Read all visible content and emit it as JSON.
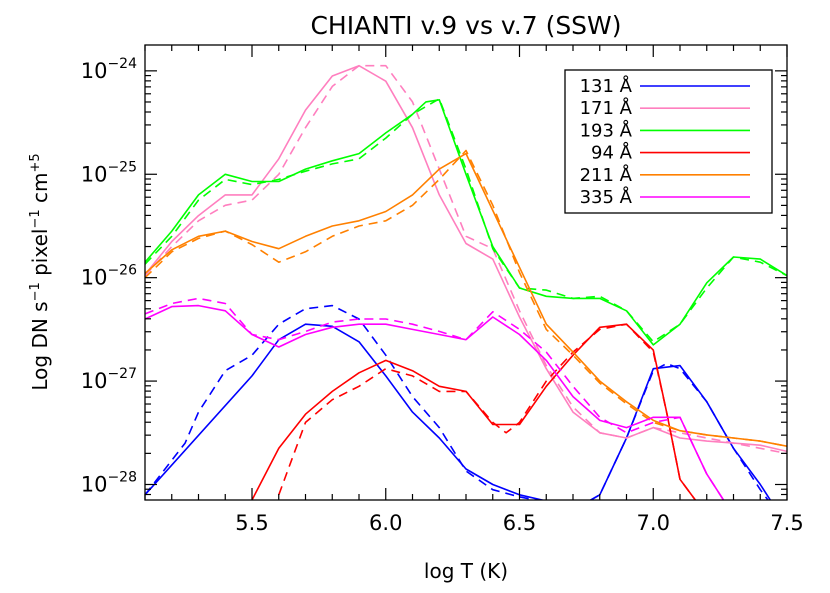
{
  "chart_data": {
    "type": "line",
    "title": "CHIANTI v.9 vs v.7 (SSW)",
    "xlabel": "log T (K)",
    "ylabel": {
      "prefix": "Log DN s",
      "exp1": "−1",
      "mid": " pixel",
      "exp2": "−1",
      "mid2": " cm",
      "exp3": "+5"
    },
    "xlim": [
      5.1,
      7.5
    ],
    "ylim_log10": [
      -28.15,
      -23.75
    ],
    "y_scale": "log",
    "x_ticks": [
      5.5,
      6.0,
      6.5,
      7.0,
      7.5
    ],
    "x_tick_labels": [
      "5.5",
      "6.0",
      "6.5",
      "7.0",
      "7.5"
    ],
    "y_ticks": [
      {
        "base": "10",
        "exp": "−28",
        "log": -28
      },
      {
        "base": "10",
        "exp": "−27",
        "log": -27
      },
      {
        "base": "10",
        "exp": "−26",
        "log": -26
      },
      {
        "base": "10",
        "exp": "−25",
        "log": -25
      },
      {
        "base": "10",
        "exp": "−24",
        "log": -24
      }
    ],
    "legend_position": "top-right",
    "line_styles": {
      "v9": "solid",
      "v7": "dashed"
    },
    "series": [
      {
        "name": "131 Å",
        "color": "#0000ff",
        "v9": [
          [
            5.1,
            -28.1
          ],
          [
            5.5,
            -26.95
          ],
          [
            5.6,
            -26.6
          ],
          [
            5.7,
            -26.45
          ],
          [
            5.8,
            -26.47
          ],
          [
            5.9,
            -26.62
          ],
          [
            6.0,
            -26.95
          ],
          [
            6.1,
            -27.3
          ],
          [
            6.2,
            -27.55
          ],
          [
            6.3,
            -27.85
          ],
          [
            6.4,
            -28.0
          ],
          [
            6.5,
            -28.1
          ],
          [
            6.6,
            -28.16
          ],
          [
            6.7,
            -28.25
          ],
          [
            6.8,
            -28.1
          ],
          [
            6.9,
            -27.55
          ],
          [
            7.0,
            -26.88
          ],
          [
            7.1,
            -26.85
          ],
          [
            7.2,
            -27.2
          ],
          [
            7.3,
            -27.65
          ],
          [
            7.4,
            -28.0
          ],
          [
            7.5,
            -28.4
          ]
        ],
        "v7": [
          [
            5.1,
            -28.1
          ],
          [
            5.25,
            -27.6
          ],
          [
            5.3,
            -27.3
          ],
          [
            5.4,
            -26.9
          ],
          [
            5.5,
            -26.75
          ],
          [
            5.6,
            -26.45
          ],
          [
            5.7,
            -26.3
          ],
          [
            5.8,
            -26.27
          ],
          [
            5.9,
            -26.4
          ],
          [
            6.0,
            -26.75
          ],
          [
            6.1,
            -27.15
          ],
          [
            6.2,
            -27.45
          ],
          [
            6.3,
            -27.87
          ],
          [
            6.4,
            -28.05
          ],
          [
            6.5,
            -28.12
          ],
          [
            6.6,
            -28.17
          ],
          [
            6.7,
            -28.25
          ],
          [
            6.8,
            -28.1
          ],
          [
            6.9,
            -27.55
          ],
          [
            7.0,
            -26.9
          ],
          [
            7.05,
            -26.83
          ],
          [
            7.1,
            -26.88
          ],
          [
            7.2,
            -27.2
          ],
          [
            7.3,
            -27.65
          ],
          [
            7.4,
            -28.05
          ],
          [
            7.5,
            -28.4
          ]
        ]
      },
      {
        "name": "171 Å",
        "color": "#ff7fbf",
        "v9": [
          [
            5.1,
            -25.97
          ],
          [
            5.2,
            -25.65
          ],
          [
            5.3,
            -25.4
          ],
          [
            5.4,
            -25.2
          ],
          [
            5.5,
            -25.2
          ],
          [
            5.6,
            -24.85
          ],
          [
            5.7,
            -24.38
          ],
          [
            5.8,
            -24.05
          ],
          [
            5.9,
            -23.95
          ],
          [
            6.0,
            -24.1
          ],
          [
            6.1,
            -24.55
          ],
          [
            6.2,
            -25.2
          ],
          [
            6.3,
            -25.67
          ],
          [
            6.4,
            -25.82
          ],
          [
            6.5,
            -26.38
          ],
          [
            6.6,
            -26.88
          ],
          [
            6.7,
            -27.3
          ],
          [
            6.8,
            -27.5
          ],
          [
            6.9,
            -27.55
          ],
          [
            7.0,
            -27.45
          ],
          [
            7.1,
            -27.55
          ],
          [
            7.2,
            -27.58
          ],
          [
            7.3,
            -27.6
          ],
          [
            7.4,
            -27.62
          ],
          [
            7.5,
            -27.68
          ]
        ],
        "v7": [
          [
            5.1,
            -25.98
          ],
          [
            5.2,
            -25.7
          ],
          [
            5.3,
            -25.45
          ],
          [
            5.4,
            -25.3
          ],
          [
            5.5,
            -25.25
          ],
          [
            5.6,
            -25.0
          ],
          [
            5.7,
            -24.55
          ],
          [
            5.8,
            -24.15
          ],
          [
            5.9,
            -23.95
          ],
          [
            6.0,
            -23.95
          ],
          [
            6.1,
            -24.3
          ],
          [
            6.2,
            -24.95
          ],
          [
            6.3,
            -25.6
          ],
          [
            6.4,
            -25.72
          ],
          [
            6.5,
            -26.32
          ],
          [
            6.6,
            -26.85
          ],
          [
            6.7,
            -27.25
          ],
          [
            6.8,
            -27.5
          ],
          [
            6.9,
            -27.55
          ],
          [
            7.0,
            -27.45
          ],
          [
            7.1,
            -27.5
          ],
          [
            7.2,
            -27.55
          ],
          [
            7.3,
            -27.6
          ],
          [
            7.4,
            -27.65
          ],
          [
            7.5,
            -27.7
          ]
        ]
      },
      {
        "name": "193 Å",
        "color": "#00ff00",
        "v9": [
          [
            5.1,
            -25.85
          ],
          [
            5.2,
            -25.55
          ],
          [
            5.3,
            -25.2
          ],
          [
            5.4,
            -25.0
          ],
          [
            5.5,
            -25.07
          ],
          [
            5.6,
            -25.07
          ],
          [
            5.7,
            -24.95
          ],
          [
            5.8,
            -24.87
          ],
          [
            5.9,
            -24.8
          ],
          [
            6.0,
            -24.6
          ],
          [
            6.1,
            -24.42
          ],
          [
            6.15,
            -24.3
          ],
          [
            6.2,
            -24.28
          ],
          [
            6.3,
            -25.0
          ],
          [
            6.4,
            -25.7
          ],
          [
            6.5,
            -26.1
          ],
          [
            6.6,
            -26.18
          ],
          [
            6.7,
            -26.2
          ],
          [
            6.8,
            -26.2
          ],
          [
            6.9,
            -26.32
          ],
          [
            7.0,
            -26.65
          ],
          [
            7.1,
            -26.45
          ],
          [
            7.2,
            -26.05
          ],
          [
            7.3,
            -25.8
          ],
          [
            7.4,
            -25.82
          ],
          [
            7.5,
            -25.98
          ]
        ],
        "v7": [
          [
            5.1,
            -25.87
          ],
          [
            5.2,
            -25.6
          ],
          [
            5.3,
            -25.25
          ],
          [
            5.4,
            -25.05
          ],
          [
            5.5,
            -25.1
          ],
          [
            5.6,
            -25.05
          ],
          [
            5.7,
            -24.97
          ],
          [
            5.8,
            -24.9
          ],
          [
            5.9,
            -24.85
          ],
          [
            6.0,
            -24.65
          ],
          [
            6.1,
            -24.42
          ],
          [
            6.2,
            -24.27
          ],
          [
            6.3,
            -24.95
          ],
          [
            6.4,
            -25.72
          ],
          [
            6.5,
            -26.1
          ],
          [
            6.6,
            -26.12
          ],
          [
            6.7,
            -26.2
          ],
          [
            6.8,
            -26.18
          ],
          [
            6.9,
            -26.32
          ],
          [
            7.0,
            -26.62
          ],
          [
            7.1,
            -26.45
          ],
          [
            7.2,
            -26.1
          ],
          [
            7.3,
            -25.8
          ],
          [
            7.4,
            -25.85
          ],
          [
            7.5,
            -25.98
          ]
        ]
      },
      {
        "name": "94 Å",
        "color": "#ff0000",
        "v9": [
          [
            5.5,
            -28.15
          ],
          [
            5.6,
            -27.65
          ],
          [
            5.7,
            -27.32
          ],
          [
            5.8,
            -27.1
          ],
          [
            5.9,
            -26.92
          ],
          [
            6.0,
            -26.8
          ],
          [
            6.1,
            -26.9
          ],
          [
            6.2,
            -27.05
          ],
          [
            6.3,
            -27.1
          ],
          [
            6.4,
            -27.42
          ],
          [
            6.5,
            -27.42
          ],
          [
            6.6,
            -27.05
          ],
          [
            6.7,
            -26.75
          ],
          [
            6.8,
            -26.48
          ],
          [
            6.9,
            -26.45
          ],
          [
            7.0,
            -26.7
          ],
          [
            7.05,
            -27.3
          ],
          [
            7.1,
            -27.95
          ],
          [
            7.2,
            -28.3
          ]
        ],
        "v7": [
          [
            5.6,
            -28.1
          ],
          [
            5.7,
            -27.4
          ],
          [
            5.8,
            -27.18
          ],
          [
            5.9,
            -27.05
          ],
          [
            6.0,
            -26.88
          ],
          [
            6.1,
            -26.95
          ],
          [
            6.2,
            -27.1
          ],
          [
            6.3,
            -27.1
          ],
          [
            6.4,
            -27.4
          ],
          [
            6.45,
            -27.5
          ],
          [
            6.5,
            -27.4
          ],
          [
            6.6,
            -27.0
          ],
          [
            6.7,
            -26.72
          ],
          [
            6.8,
            -26.5
          ],
          [
            6.9,
            -26.45
          ],
          [
            7.0,
            -26.72
          ],
          [
            7.05,
            -27.3
          ],
          [
            7.1,
            -27.95
          ],
          [
            7.2,
            -28.3
          ]
        ]
      },
      {
        "name": "211 Å",
        "color": "#ff8000",
        "v9": [
          [
            5.1,
            -25.96
          ],
          [
            5.2,
            -25.73
          ],
          [
            5.3,
            -25.6
          ],
          [
            5.4,
            -25.55
          ],
          [
            5.5,
            -25.65
          ],
          [
            5.6,
            -25.72
          ],
          [
            5.7,
            -25.6
          ],
          [
            5.8,
            -25.5
          ],
          [
            5.9,
            -25.45
          ],
          [
            6.0,
            -25.36
          ],
          [
            6.1,
            -25.2
          ],
          [
            6.2,
            -24.95
          ],
          [
            6.3,
            -24.8
          ],
          [
            6.4,
            -25.35
          ],
          [
            6.5,
            -25.9
          ],
          [
            6.6,
            -26.45
          ],
          [
            6.7,
            -26.72
          ],
          [
            6.8,
            -27.0
          ],
          [
            6.9,
            -27.2
          ],
          [
            7.0,
            -27.38
          ],
          [
            7.1,
            -27.48
          ],
          [
            7.2,
            -27.52
          ],
          [
            7.3,
            -27.55
          ],
          [
            7.4,
            -27.58
          ],
          [
            7.5,
            -27.63
          ]
        ],
        "v7": [
          [
            5.1,
            -26.0
          ],
          [
            5.2,
            -25.75
          ],
          [
            5.3,
            -25.62
          ],
          [
            5.4,
            -25.55
          ],
          [
            5.5,
            -25.68
          ],
          [
            5.6,
            -25.85
          ],
          [
            5.7,
            -25.75
          ],
          [
            5.8,
            -25.6
          ],
          [
            5.9,
            -25.5
          ],
          [
            6.0,
            -25.45
          ],
          [
            6.1,
            -25.3
          ],
          [
            6.2,
            -25.05
          ],
          [
            6.3,
            -24.77
          ],
          [
            6.4,
            -25.3
          ],
          [
            6.5,
            -25.95
          ],
          [
            6.6,
            -26.5
          ],
          [
            6.7,
            -26.75
          ],
          [
            6.8,
            -27.02
          ],
          [
            6.9,
            -27.22
          ],
          [
            7.0,
            -27.4
          ],
          [
            7.1,
            -27.48
          ],
          [
            7.2,
            -27.52
          ],
          [
            7.3,
            -27.55
          ],
          [
            7.4,
            -27.58
          ],
          [
            7.5,
            -27.63
          ]
        ]
      },
      {
        "name": "335 Å",
        "color": "#ff00ff",
        "v9": [
          [
            5.1,
            -26.4
          ],
          [
            5.2,
            -26.28
          ],
          [
            5.3,
            -26.27
          ],
          [
            5.4,
            -26.32
          ],
          [
            5.5,
            -26.55
          ],
          [
            5.6,
            -26.67
          ],
          [
            5.7,
            -26.55
          ],
          [
            5.8,
            -26.48
          ],
          [
            5.9,
            -26.45
          ],
          [
            6.0,
            -26.45
          ],
          [
            6.1,
            -26.5
          ],
          [
            6.2,
            -26.55
          ],
          [
            6.3,
            -26.6
          ],
          [
            6.4,
            -26.38
          ],
          [
            6.5,
            -26.55
          ],
          [
            6.6,
            -26.8
          ],
          [
            6.7,
            -27.15
          ],
          [
            6.8,
            -27.38
          ],
          [
            6.9,
            -27.45
          ],
          [
            7.0,
            -27.35
          ],
          [
            7.1,
            -27.35
          ],
          [
            7.2,
            -27.9
          ],
          [
            7.3,
            -28.3
          ]
        ],
        "v7": [
          [
            5.1,
            -26.35
          ],
          [
            5.2,
            -26.25
          ],
          [
            5.3,
            -26.2
          ],
          [
            5.4,
            -26.25
          ],
          [
            5.5,
            -26.55
          ],
          [
            5.6,
            -26.6
          ],
          [
            5.7,
            -26.52
          ],
          [
            5.8,
            -26.43
          ],
          [
            5.9,
            -26.4
          ],
          [
            6.0,
            -26.4
          ],
          [
            6.1,
            -26.45
          ],
          [
            6.2,
            -26.52
          ],
          [
            6.3,
            -26.6
          ],
          [
            6.4,
            -26.33
          ],
          [
            6.5,
            -26.5
          ],
          [
            6.6,
            -26.72
          ],
          [
            6.7,
            -27.05
          ],
          [
            6.8,
            -27.35
          ],
          [
            6.9,
            -27.5
          ],
          [
            7.0,
            -27.4
          ],
          [
            7.1,
            -27.35
          ],
          [
            7.2,
            -27.9
          ],
          [
            7.3,
            -28.3
          ]
        ]
      }
    ]
  }
}
